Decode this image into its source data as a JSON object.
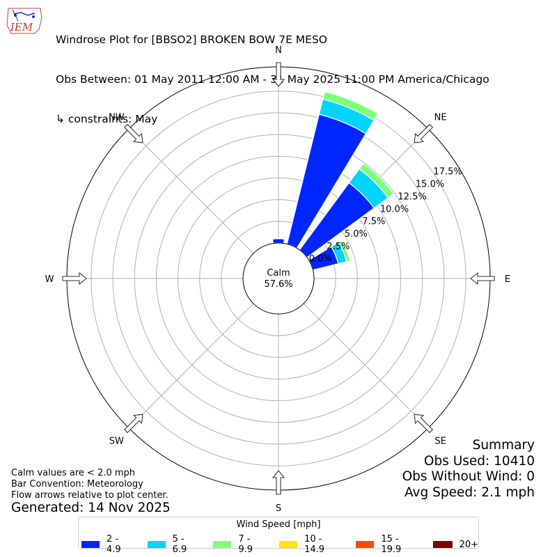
{
  "logo": {
    "text": "IEM"
  },
  "header": {
    "title_line1": "Windrose Plot for [BBSO2] BROKEN BOW 7E MESO",
    "title_line2": "Obs Between: 01 May 2011 12:00 AM - 31 May 2025 11:00 PM America/Chicago",
    "title_line3": "↳ constraints: May"
  },
  "calm": {
    "label": "Calm",
    "value": "57.6%"
  },
  "summary": {
    "heading": "Summary",
    "obs_used": "Obs Used: 10410",
    "obs_without_wind": "Obs Without Wind: 0",
    "avg_speed": "Avg Speed: 2.1 mph"
  },
  "notes": {
    "line1": "Calm values are < 2.0 mph",
    "line2": "Bar Convention: Meteorology",
    "line3": "Flow arrows relative to plot center."
  },
  "generated": "Generated: 14 Nov 2025",
  "legend": {
    "title": "Wind Speed [mph]",
    "items": [
      {
        "label": "2 - 4.9",
        "color": "#0026ff"
      },
      {
        "label": "5 - 6.9",
        "color": "#00d4ff"
      },
      {
        "label": "7 - 9.9",
        "color": "#7dff7a"
      },
      {
        "label": "10 - 14.9",
        "color": "#ffe600"
      },
      {
        "label": "15 - 19.9",
        "color": "#ff4a00"
      },
      {
        "label": "20+",
        "color": "#7f0000"
      }
    ]
  },
  "chart_data": {
    "type": "windrose",
    "directions": [
      "N",
      "NNE",
      "NE",
      "ENE"
    ],
    "direction_degrees": [
      0,
      22.5,
      45,
      67.5
    ],
    "compass_labels": [
      "N",
      "NE",
      "E",
      "SE",
      "S",
      "SW",
      "W",
      "NW"
    ],
    "radial_tick_labels": [
      "0.0%",
      "2.5%",
      "5.0%",
      "7.5%",
      "10.0%",
      "12.5%",
      "15.0%",
      "17.5%"
    ],
    "radial_ticks": [
      0,
      2.5,
      5,
      7.5,
      10,
      12.5,
      15,
      17.5
    ],
    "rmax": 20.3,
    "calm_percent": 57.6,
    "series": [
      {
        "name": "2 - 4.9",
        "color": "#0026ff",
        "values": [
          0.5,
          15.4,
          9.6,
          3.0
        ]
      },
      {
        "name": "5 - 6.9",
        "color": "#00d4ff",
        "values": [
          0.1,
          1.8,
          2.0,
          1.0
        ]
      },
      {
        "name": "7 - 9.9",
        "color": "#7dff7a",
        "values": [
          0.0,
          0.9,
          0.8,
          0.4
        ]
      },
      {
        "name": "10 - 14.9",
        "color": "#ffe600",
        "values": [
          0,
          0,
          0,
          0
        ]
      },
      {
        "name": "15 - 19.9",
        "color": "#ff4a00",
        "values": [
          0,
          0,
          0,
          0
        ]
      },
      {
        "name": "20+",
        "color": "#7f0000",
        "values": [
          0,
          0,
          0,
          0
        ]
      }
    ]
  }
}
